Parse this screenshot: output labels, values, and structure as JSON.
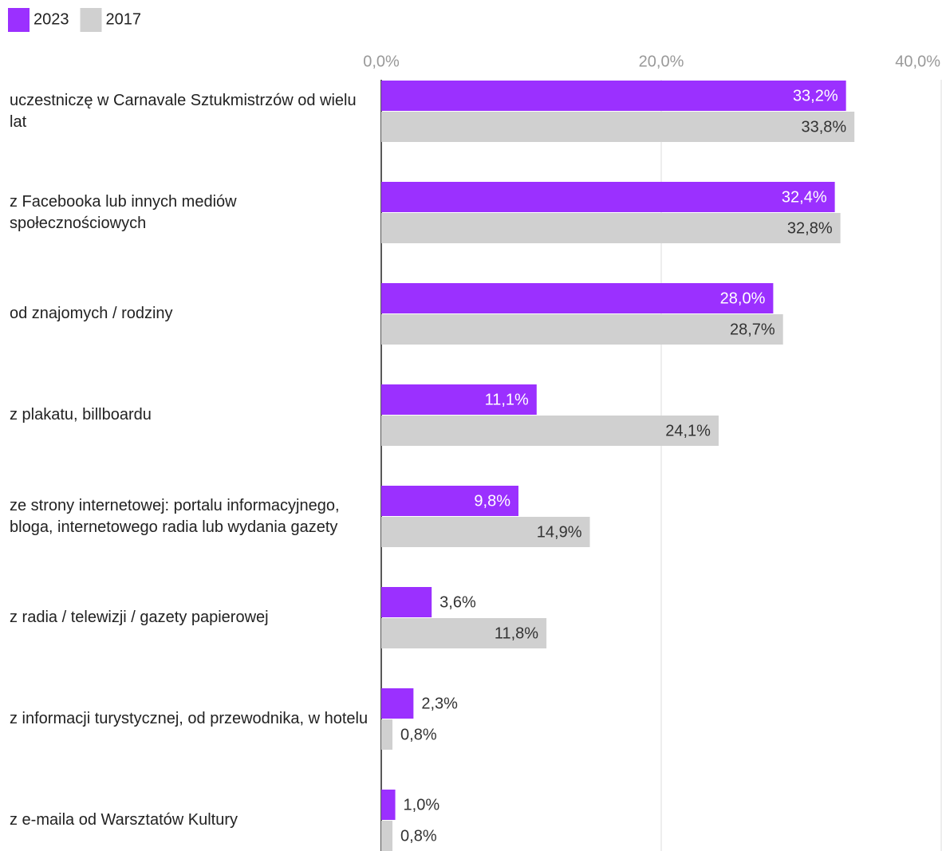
{
  "chart_data": {
    "type": "bar",
    "orientation": "horizontal",
    "categories": [
      "uczestniczę w Carnavale Sztukmistrzów od wielu lat",
      "z Facebooka lub innych mediów społecznościowych",
      "od znajomych / rodziny",
      "z plakatu, billboardu",
      "ze strony internetowej: portalu informacyjnego, bloga, internetowego radia lub wydania gazety",
      "z radia / telewizji / gazety papierowej",
      "z informacji turystycznej, od przewodnika, w hotelu",
      "z e-maila od Warsztatów Kultury"
    ],
    "series": [
      {
        "name": "2023",
        "color": "#9b30ff",
        "values": [
          33.2,
          32.4,
          28.0,
          11.1,
          9.8,
          3.6,
          2.3,
          1.0
        ],
        "value_labels": [
          "33,2%",
          "32,4%",
          "28,0%",
          "11,1%",
          "9,8%",
          "3,6%",
          "2,3%",
          "1,0%"
        ]
      },
      {
        "name": "2017",
        "color": "#d0d0d0",
        "values": [
          33.8,
          32.8,
          28.7,
          24.1,
          14.9,
          11.8,
          0.8,
          0.8
        ],
        "value_labels": [
          "33,8%",
          "32,8%",
          "28,7%",
          "24,1%",
          "14,9%",
          "11,8%",
          "0,8%",
          "0,8%"
        ]
      }
    ],
    "xlim": [
      0,
      40
    ],
    "xticks": [
      {
        "value": 0,
        "label": "0,0%"
      },
      {
        "value": 20,
        "label": "20,0%"
      },
      {
        "value": 40,
        "label": "40,0%"
      }
    ],
    "grid": true,
    "legend": "top-left"
  }
}
